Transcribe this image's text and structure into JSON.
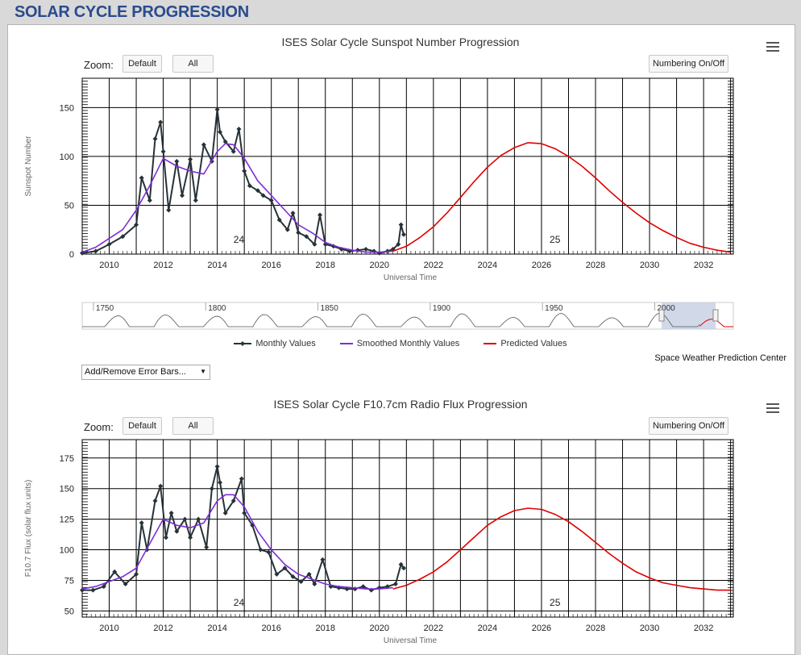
{
  "page_title": "SOLAR CYCLE PROGRESSION",
  "controls": {
    "zoom_label": "Zoom:",
    "zoom_default": "Default",
    "zoom_all": "All",
    "numbering": "Numbering On/Off",
    "error_bars": "Add/Remove Error Bars..."
  },
  "legend": {
    "monthly": "Monthly Values",
    "smoothed": "Smoothed Monthly Values",
    "predicted": "Predicted Values"
  },
  "credit": "Space Weather Prediction Center",
  "colors": {
    "monthly": "#263238",
    "smoothed": "#7d2ed6",
    "predicted": "#e00000"
  },
  "navigator": {
    "labels": [
      "1750",
      "1800",
      "1850",
      "1900",
      "1950",
      "2000"
    ]
  },
  "chart_data": [
    {
      "type": "line",
      "title": "ISES Solar Cycle Sunspot Number Progression",
      "xlabel": "Universal Time",
      "ylabel": "Sunspot Number",
      "xlim": [
        2009.0,
        2033.1
      ],
      "ylim": [
        0,
        180
      ],
      "x_ticks": [
        "2010",
        "2012",
        "2014",
        "2016",
        "2018",
        "2020",
        "2022",
        "2024",
        "2026",
        "2028",
        "2030",
        "2032"
      ],
      "y_ticks": [
        "0",
        "50",
        "100",
        "150"
      ],
      "cycle_labels": [
        {
          "x": 2014.8,
          "text": "24"
        },
        {
          "x": 2026.5,
          "text": "25"
        }
      ],
      "series": [
        {
          "name": "Monthly Values",
          "x": [
            2009.0,
            2009.5,
            2010.0,
            2010.5,
            2011.0,
            2011.2,
            2011.5,
            2011.7,
            2011.9,
            2012.0,
            2012.2,
            2012.5,
            2012.7,
            2013.0,
            2013.2,
            2013.5,
            2013.8,
            2014.0,
            2014.1,
            2014.3,
            2014.6,
            2014.8,
            2015.0,
            2015.2,
            2015.5,
            2015.7,
            2016.0,
            2016.3,
            2016.6,
            2016.8,
            2017.0,
            2017.3,
            2017.6,
            2017.8,
            2018.0,
            2018.3,
            2018.6,
            2018.9,
            2019.2,
            2019.5,
            2019.8,
            2020.0,
            2020.3,
            2020.5,
            2020.7,
            2020.8,
            2020.9
          ],
          "values": [
            1,
            3,
            10,
            18,
            30,
            78,
            55,
            118,
            135,
            105,
            45,
            95,
            60,
            97,
            55,
            112,
            95,
            148,
            125,
            115,
            105,
            128,
            85,
            70,
            65,
            60,
            55,
            35,
            25,
            42,
            22,
            18,
            10,
            40,
            10,
            8,
            5,
            3,
            4,
            5,
            3,
            1,
            3,
            5,
            10,
            30,
            20
          ]
        },
        {
          "name": "Smoothed Monthly Values",
          "x": [
            2009.0,
            2009.5,
            2010.0,
            2010.5,
            2011.0,
            2011.5,
            2012.0,
            2012.5,
            2013.0,
            2013.5,
            2014.0,
            2014.3,
            2014.6,
            2015.0,
            2015.5,
            2016.0,
            2016.5,
            2017.0,
            2017.5,
            2018.0,
            2018.5,
            2019.0,
            2019.5,
            2020.0,
            2020.5
          ],
          "values": [
            2,
            7,
            16,
            25,
            45,
            70,
            98,
            90,
            85,
            82,
            105,
            113,
            112,
            98,
            75,
            60,
            45,
            30,
            22,
            12,
            7,
            4,
            2,
            2,
            3
          ]
        },
        {
          "name": "Predicted Values",
          "x": [
            2020.5,
            2021.0,
            2021.5,
            2022.0,
            2022.5,
            2023.0,
            2023.5,
            2024.0,
            2024.5,
            2025.0,
            2025.5,
            2026.0,
            2026.5,
            2027.0,
            2027.5,
            2028.0,
            2028.5,
            2029.0,
            2029.5,
            2030.0,
            2030.5,
            2031.0,
            2031.5,
            2032.0,
            2032.5,
            2033.0
          ],
          "values": [
            3,
            8,
            17,
            28,
            42,
            58,
            74,
            89,
            101,
            109,
            114,
            113,
            108,
            100,
            90,
            78,
            65,
            53,
            42,
            32,
            24,
            17,
            11,
            7,
            4,
            2
          ]
        }
      ]
    },
    {
      "type": "line",
      "title": "ISES Solar Cycle F10.7cm Radio Flux Progression",
      "xlabel": "Universal Time",
      "ylabel": "F10.7 Flux (solar flux units)",
      "xlim": [
        2009.0,
        2033.1
      ],
      "ylim": [
        45,
        190
      ],
      "x_ticks": [
        "2010",
        "2012",
        "2014",
        "2016",
        "2018",
        "2020",
        "2022",
        "2024",
        "2026",
        "2028",
        "2030",
        "2032"
      ],
      "y_ticks": [
        "50",
        "75",
        "100",
        "125",
        "150",
        "175"
      ],
      "cycle_labels": [
        {
          "x": 2014.8,
          "text": "24"
        },
        {
          "x": 2026.5,
          "text": "25"
        }
      ],
      "series": [
        {
          "name": "Monthly Values",
          "x": [
            2009.0,
            2009.4,
            2009.8,
            2010.2,
            2010.6,
            2011.0,
            2011.2,
            2011.4,
            2011.7,
            2011.9,
            2012.1,
            2012.3,
            2012.5,
            2012.8,
            2013.0,
            2013.3,
            2013.6,
            2013.8,
            2014.0,
            2014.1,
            2014.3,
            2014.6,
            2014.9,
            2015.0,
            2015.3,
            2015.6,
            2015.9,
            2016.2,
            2016.5,
            2016.8,
            2017.1,
            2017.4,
            2017.6,
            2017.9,
            2018.2,
            2018.5,
            2018.8,
            2019.1,
            2019.4,
            2019.7,
            2020.0,
            2020.3,
            2020.6,
            2020.8,
            2020.9
          ],
          "values": [
            67,
            67,
            70,
            82,
            72,
            80,
            122,
            100,
            140,
            152,
            110,
            130,
            115,
            125,
            110,
            125,
            102,
            150,
            168,
            155,
            130,
            140,
            158,
            130,
            120,
            100,
            98,
            80,
            85,
            78,
            74,
            80,
            72,
            92,
            70,
            69,
            68,
            68,
            70,
            67,
            69,
            70,
            72,
            88,
            85
          ]
        },
        {
          "name": "Smoothed Monthly Values",
          "x": [
            2009.0,
            2009.5,
            2010.0,
            2010.5,
            2011.0,
            2011.5,
            2012.0,
            2012.5,
            2013.0,
            2013.5,
            2014.0,
            2014.3,
            2014.6,
            2015.0,
            2015.5,
            2016.0,
            2016.5,
            2017.0,
            2017.5,
            2018.0,
            2018.5,
            2019.0,
            2019.5,
            2020.0,
            2020.5
          ],
          "values": [
            68,
            70,
            74,
            78,
            85,
            105,
            125,
            120,
            118,
            122,
            140,
            145,
            145,
            135,
            115,
            100,
            88,
            80,
            76,
            72,
            70,
            69,
            68,
            68,
            69
          ]
        },
        {
          "name": "Predicted Values",
          "x": [
            2020.5,
            2021.0,
            2021.5,
            2022.0,
            2022.5,
            2023.0,
            2023.5,
            2024.0,
            2024.5,
            2025.0,
            2025.5,
            2026.0,
            2026.5,
            2027.0,
            2027.5,
            2028.0,
            2028.5,
            2029.0,
            2029.5,
            2030.0,
            2030.5,
            2031.0,
            2031.5,
            2032.0,
            2032.5,
            2033.0
          ],
          "values": [
            68,
            71,
            76,
            82,
            90,
            100,
            110,
            120,
            127,
            132,
            134,
            133,
            129,
            123,
            115,
            106,
            97,
            89,
            82,
            77,
            73,
            71,
            69,
            68,
            67,
            67
          ]
        }
      ]
    }
  ]
}
